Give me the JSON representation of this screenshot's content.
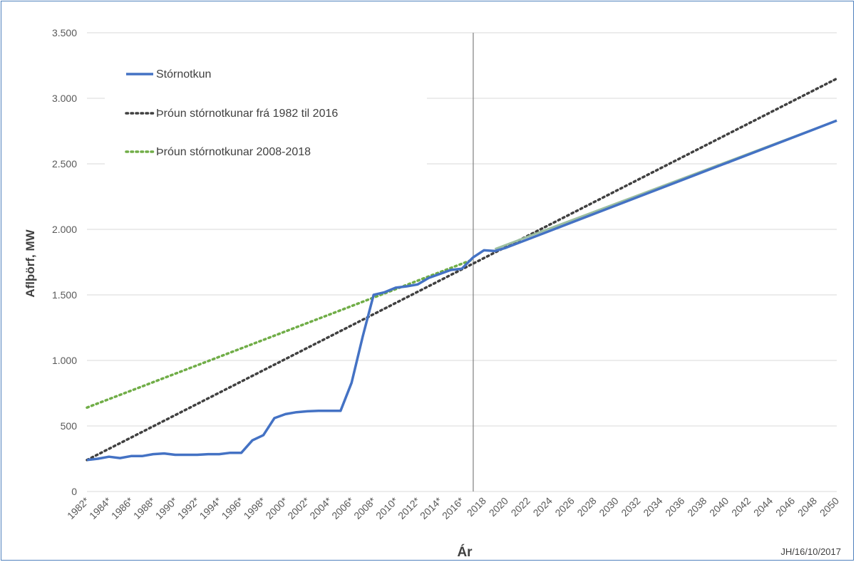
{
  "chart_data": {
    "type": "line",
    "ylabel": "Aflþörf, MW",
    "xlabel": "Ár",
    "credit": "JH/16/10/2017",
    "ylim": [
      0,
      3500
    ],
    "yticks": [
      0,
      500,
      1000,
      1500,
      2000,
      2500,
      3000,
      3500
    ],
    "ytick_labels": [
      "0",
      "500",
      "1.000",
      "1.500",
      "2.000",
      "2.500",
      "3.000",
      "3.500"
    ],
    "xlim": [
      1982,
      2050
    ],
    "xtick_labels": [
      "1982*",
      "1984*",
      "1986*",
      "1988*",
      "1990*",
      "1992*",
      "1994*",
      "1996*",
      "1998*",
      "2000*",
      "2002*",
      "2004*",
      "2006*",
      "2008*",
      "2010*",
      "2012*",
      "2014*",
      "2016*",
      "2018",
      "2020",
      "2022",
      "2024",
      "2026",
      "2028",
      "2030",
      "2032",
      "2034",
      "2036",
      "2038",
      "2040",
      "2042",
      "2044",
      "2046",
      "2048",
      "2050"
    ],
    "vertical_marker_x": 2017,
    "grid": "horizontal",
    "legend_position": "top-left",
    "series": [
      {
        "name": "Stórnotkun",
        "style": "solid",
        "color": "#4472c4",
        "points": [
          [
            1982,
            240
          ],
          [
            1983,
            250
          ],
          [
            1984,
            265
          ],
          [
            1985,
            255
          ],
          [
            1986,
            270
          ],
          [
            1987,
            270
          ],
          [
            1988,
            285
          ],
          [
            1989,
            290
          ],
          [
            1990,
            280
          ],
          [
            1991,
            280
          ],
          [
            1992,
            280
          ],
          [
            1993,
            285
          ],
          [
            1994,
            285
          ],
          [
            1995,
            295
          ],
          [
            1996,
            295
          ],
          [
            1997,
            390
          ],
          [
            1998,
            430
          ],
          [
            1999,
            560
          ],
          [
            2000,
            590
          ],
          [
            2001,
            605
          ],
          [
            2002,
            612
          ],
          [
            2003,
            615
          ],
          [
            2004,
            615
          ],
          [
            2005,
            615
          ],
          [
            2006,
            830
          ],
          [
            2007,
            1180
          ],
          [
            2008,
            1500
          ],
          [
            2009,
            1520
          ],
          [
            2010,
            1555
          ],
          [
            2011,
            1565
          ],
          [
            2012,
            1580
          ],
          [
            2013,
            1630
          ],
          [
            2014,
            1660
          ],
          [
            2015,
            1690
          ],
          [
            2016,
            1700
          ],
          [
            2017,
            1785
          ],
          [
            2018,
            1840
          ],
          [
            2019,
            1835
          ],
          [
            2020,
            1860
          ],
          [
            2050,
            2830
          ]
        ]
      },
      {
        "name": "Þróun stórnotkunar frá 1982 til 2016",
        "style": "dotted",
        "color": "#404040",
        "points": [
          [
            1982,
            240
          ],
          [
            2050,
            3150
          ]
        ]
      },
      {
        "name": "Þróun stórnotkunar 2008-2018",
        "style": "dotted",
        "color": "#70ad47",
        "points": [
          [
            1982,
            640
          ],
          [
            2017,
            1770
          ]
        ]
      },
      {
        "name": "",
        "style": "solid",
        "color": "#9cbfa0",
        "points": [
          [
            2019,
            1850
          ],
          [
            2050,
            2830
          ]
        ]
      }
    ]
  }
}
